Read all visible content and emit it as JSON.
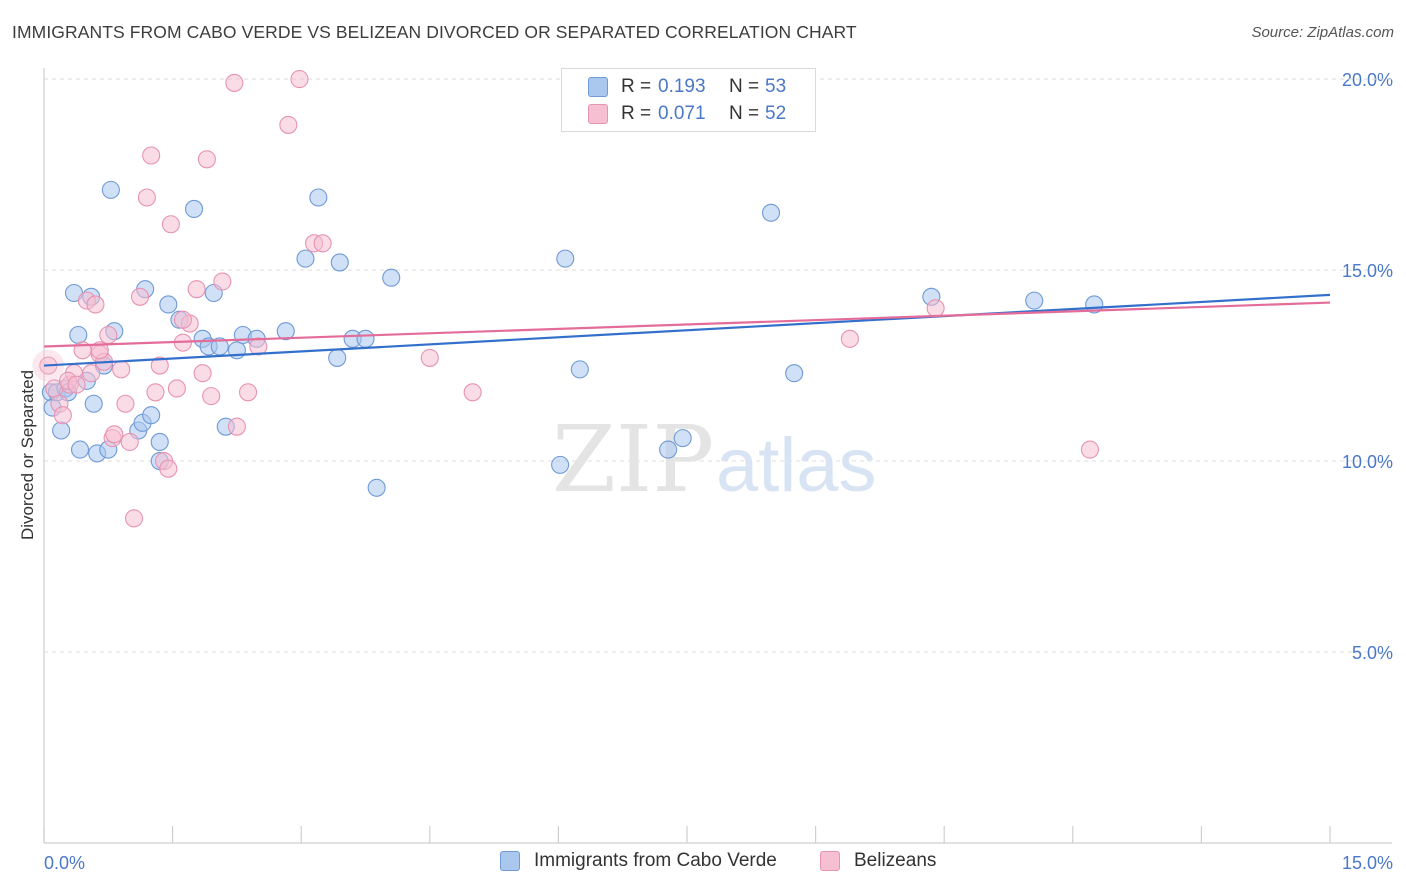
{
  "title": "IMMIGRANTS FROM CABO VERDE VS BELIZEAN DIVORCED OR SEPARATED CORRELATION CHART",
  "source": "Source: ZipAtlas.com",
  "watermark": {
    "zip": "ZIP",
    "atlas": "atlas"
  },
  "colors": {
    "blue_fill": "#aac7ee",
    "blue_stroke": "#6f9ad6",
    "blue_line": "#3370cc",
    "pink_fill": "#f6bfd2",
    "pink_stroke": "#e793b2",
    "pink_line": "#e36c99",
    "tick_label": "#4a78c8",
    "grid": "#dedede"
  },
  "legend_top": {
    "rows": [
      {
        "r_label": "R =",
        "r_value": "0.193",
        "n_label": "N =",
        "n_value": "53"
      },
      {
        "r_label": "R =",
        "r_value": "0.071",
        "n_label": "N =",
        "n_value": "52"
      }
    ]
  },
  "legend_bottom": [
    "Immigrants from Cabo Verde",
    "Belizeans"
  ],
  "chart_data": {
    "type": "scatter",
    "xlabel": "",
    "ylabel": "Divorced or Separated",
    "xlim": [
      0,
      15
    ],
    "ylim": [
      0,
      20.5
    ],
    "x_tick_labels": [
      "0.0%",
      "15.0%"
    ],
    "y_ticks": [
      5,
      10,
      15,
      20
    ],
    "y_tick_labels": [
      "5.0%",
      "10.0%",
      "15.0%",
      "20.0%"
    ],
    "grid": true,
    "series": [
      {
        "name": "Immigrants from Cabo Verde",
        "color": "blue",
        "points": [
          [
            0.08,
            11.8
          ],
          [
            0.1,
            11.4
          ],
          [
            0.15,
            11.8
          ],
          [
            0.2,
            10.8
          ],
          [
            0.25,
            11.9
          ],
          [
            0.28,
            11.8
          ],
          [
            0.35,
            14.4
          ],
          [
            0.4,
            13.3
          ],
          [
            0.42,
            10.3
          ],
          [
            0.5,
            12.1
          ],
          [
            0.55,
            14.3
          ],
          [
            0.58,
            11.5
          ],
          [
            0.62,
            10.2
          ],
          [
            0.7,
            12.5
          ],
          [
            0.75,
            10.3
          ],
          [
            0.78,
            17.1
          ],
          [
            0.82,
            13.4
          ],
          [
            1.1,
            10.8
          ],
          [
            1.15,
            11.0
          ],
          [
            1.18,
            14.5
          ],
          [
            1.25,
            11.2
          ],
          [
            1.35,
            10.5
          ],
          [
            1.35,
            10.0
          ],
          [
            1.45,
            14.1
          ],
          [
            1.58,
            13.7
          ],
          [
            1.75,
            16.6
          ],
          [
            1.85,
            13.2
          ],
          [
            1.92,
            13.0
          ],
          [
            1.98,
            14.4
          ],
          [
            2.05,
            13.0
          ],
          [
            2.12,
            10.9
          ],
          [
            2.25,
            12.9
          ],
          [
            2.32,
            13.3
          ],
          [
            2.48,
            13.2
          ],
          [
            2.82,
            13.4
          ],
          [
            3.05,
            15.3
          ],
          [
            3.2,
            16.9
          ],
          [
            3.42,
            12.7
          ],
          [
            3.45,
            15.2
          ],
          [
            3.6,
            13.2
          ],
          [
            3.75,
            13.2
          ],
          [
            3.88,
            9.3
          ],
          [
            4.05,
            14.8
          ],
          [
            6.02,
            9.9
          ],
          [
            6.08,
            15.3
          ],
          [
            6.25,
            12.4
          ],
          [
            7.28,
            10.3
          ],
          [
            7.45,
            10.6
          ],
          [
            8.48,
            16.5
          ],
          [
            8.75,
            12.3
          ],
          [
            10.35,
            14.3
          ],
          [
            11.55,
            14.2
          ],
          [
            12.25,
            14.1
          ]
        ]
      },
      {
        "name": "Belizeans",
        "color": "pink",
        "points": [
          [
            0.05,
            12.5
          ],
          [
            0.12,
            11.9
          ],
          [
            0.18,
            11.5
          ],
          [
            0.22,
            11.2
          ],
          [
            0.3,
            12.0
          ],
          [
            0.35,
            12.3
          ],
          [
            0.45,
            12.9
          ],
          [
            0.5,
            14.2
          ],
          [
            0.55,
            12.3
          ],
          [
            0.6,
            14.1
          ],
          [
            0.65,
            12.8
          ],
          [
            0.7,
            12.6
          ],
          [
            0.75,
            13.3
          ],
          [
            0.8,
            10.6
          ],
          [
            0.82,
            10.7
          ],
          [
            0.9,
            12.4
          ],
          [
            0.95,
            11.5
          ],
          [
            1.0,
            10.5
          ],
          [
            1.05,
            8.5
          ],
          [
            1.12,
            14.3
          ],
          [
            1.2,
            16.9
          ],
          [
            1.25,
            18.0
          ],
          [
            1.3,
            11.8
          ],
          [
            1.35,
            12.5
          ],
          [
            1.4,
            10.0
          ],
          [
            1.45,
            9.8
          ],
          [
            1.48,
            16.2
          ],
          [
            1.55,
            11.9
          ],
          [
            1.62,
            13.1
          ],
          [
            1.7,
            13.6
          ],
          [
            1.78,
            14.5
          ],
          [
            1.85,
            12.3
          ],
          [
            1.9,
            17.9
          ],
          [
            1.95,
            11.7
          ],
          [
            2.08,
            14.7
          ],
          [
            2.22,
            19.9
          ],
          [
            2.25,
            10.9
          ],
          [
            2.38,
            11.8
          ],
          [
            2.5,
            13.0
          ],
          [
            2.85,
            18.8
          ],
          [
            2.98,
            20.0
          ],
          [
            3.15,
            15.7
          ],
          [
            3.25,
            15.7
          ],
          [
            4.5,
            12.7
          ],
          [
            5.0,
            11.8
          ],
          [
            9.4,
            13.2
          ],
          [
            10.4,
            14.0
          ],
          [
            12.2,
            10.3
          ],
          [
            0.28,
            12.1
          ],
          [
            0.38,
            12.0
          ],
          [
            0.65,
            12.9
          ],
          [
            1.62,
            13.7
          ]
        ]
      }
    ],
    "trend_lines": [
      {
        "series": "Immigrants from Cabo Verde",
        "y_at_x0": 12.5,
        "y_at_x15": 14.35
      },
      {
        "series": "Belizeans",
        "y_at_x0": 13.0,
        "y_at_x15": 14.15
      }
    ]
  }
}
